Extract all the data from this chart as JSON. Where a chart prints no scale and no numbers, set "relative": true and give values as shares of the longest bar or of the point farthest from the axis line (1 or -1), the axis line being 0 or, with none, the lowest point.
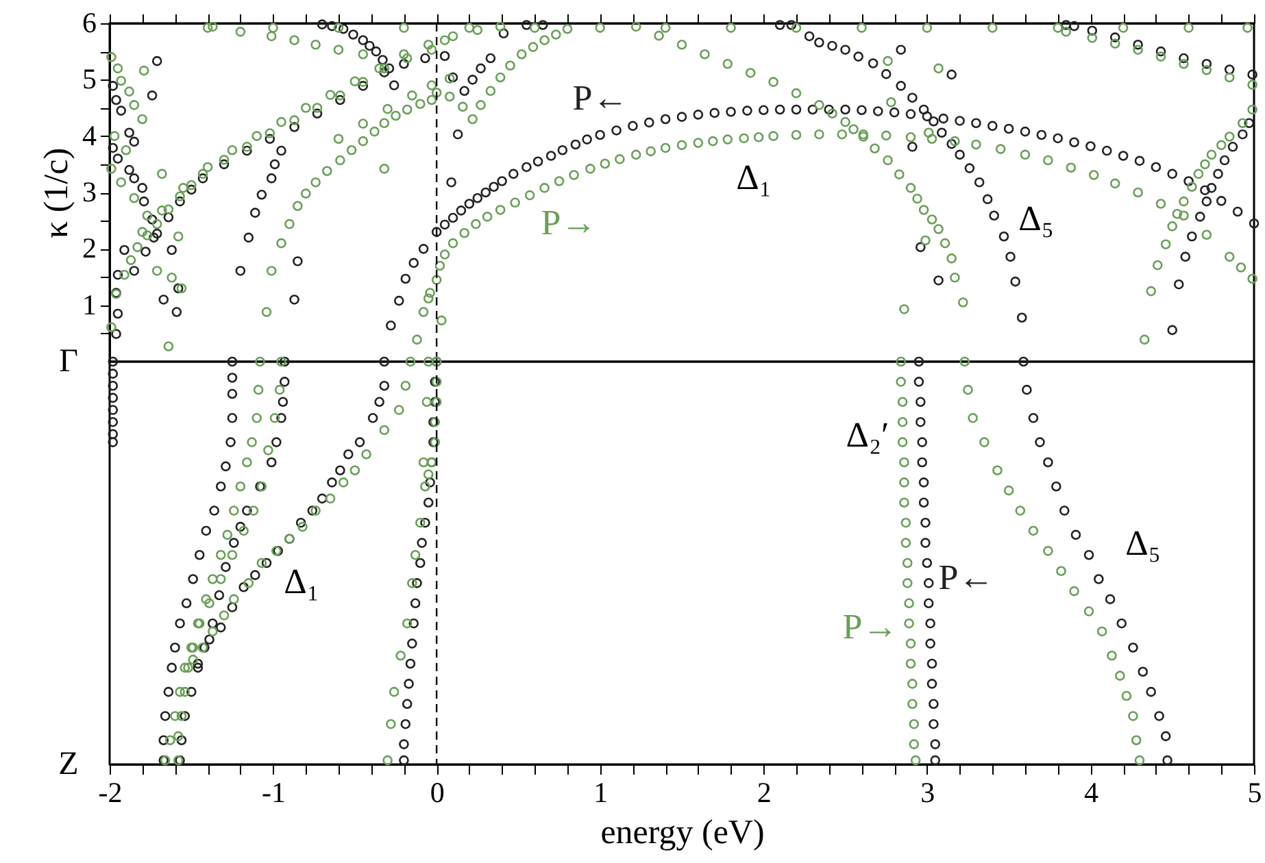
{
  "chart_data": [
    {
      "type": "scatter",
      "ylabel": "κ (1/c)",
      "marker": "circle",
      "tick_labels": "y",
      "xlim": [
        -2,
        5
      ],
      "ylim": [
        0,
        6
      ],
      "xticks": [
        -2,
        {
          "value": -1.8,
          "label": null
        },
        {
          "value": -1.6,
          "label": null
        },
        {
          "value": -1.4,
          "label": null
        },
        {
          "value": -1.2,
          "label": null
        },
        -1,
        {
          "value": -0.8,
          "label": null
        },
        {
          "value": -0.6,
          "label": null
        },
        {
          "value": -0.4,
          "label": null
        },
        {
          "value": -0.2,
          "label": null
        },
        0,
        {
          "value": 0.2,
          "label": null
        },
        {
          "value": 0.4,
          "label": null
        },
        {
          "value": 0.6,
          "label": null
        },
        {
          "value": 0.8,
          "label": null
        },
        1,
        {
          "value": 1.2,
          "label": null
        },
        {
          "value": 1.4,
          "label": null
        },
        {
          "value": 1.6,
          "label": null
        },
        {
          "value": 1.8,
          "label": null
        },
        2,
        {
          "value": 2.2,
          "label": null
        },
        {
          "value": 2.4,
          "label": null
        },
        {
          "value": 2.6,
          "label": null
        },
        {
          "value": 2.8,
          "label": null
        },
        3,
        {
          "value": 3.2,
          "label": null
        },
        {
          "value": 3.4,
          "label": null
        },
        {
          "value": 3.6,
          "label": null
        },
        {
          "value": 3.8,
          "label": null
        },
        4,
        {
          "value": 4.2,
          "label": null
        },
        {
          "value": 4.4,
          "label": null
        },
        {
          "value": 4.6,
          "label": null
        },
        {
          "value": 4.8,
          "label": null
        },
        5
      ],
      "yticks": [
        {
          "value": 0.5,
          "label": null
        },
        1,
        {
          "value": 1.5,
          "label": null
        },
        2,
        {
          "value": 2.5,
          "label": null
        },
        3,
        {
          "value": 3.5,
          "label": null
        },
        4,
        {
          "value": 4.5,
          "label": null
        },
        5,
        {
          "value": 5.5,
          "label": null
        },
        6
      ],
      "ref_lines": [
        {
          "axis": "x",
          "value": 0,
          "line_style": "dashed"
        }
      ],
      "annotations": [
        "Δ₁",
        "Δ₅"
      ],
      "series": [
        {
          "name": "P←",
          "color": "#222222",
          "x": [
            -0.28,
            -0.23,
            -0.19,
            -0.14,
            -0.08,
            0.0,
            0.05,
            0.1,
            0.15,
            0.2,
            0.25,
            0.3,
            0.35,
            0.4,
            0.47,
            0.55,
            0.62,
            0.7,
            0.77,
            0.85,
            0.92,
            1.0,
            1.1,
            1.2,
            1.3,
            1.4,
            1.5,
            1.6,
            1.7,
            1.8,
            1.9,
            2.0,
            2.1,
            2.2,
            2.3,
            2.4,
            2.5,
            2.6,
            2.7,
            2.8,
            2.9,
            3.0,
            3.1,
            3.2,
            3.3,
            3.4,
            3.5,
            3.6,
            3.7,
            3.8,
            3.9,
            4.0,
            4.1,
            4.2,
            4.3,
            4.4,
            4.5,
            4.6,
            4.7,
            4.8,
            4.9,
            5.0,
            -1.96,
            -1.85,
            -1.78,
            -1.71,
            -1.64,
            -1.57,
            -1.5,
            -1.43,
            -1.3,
            -1.16,
            -1.02,
            -0.87,
            -0.73,
            -0.59,
            -0.45,
            -0.32,
            -0.2,
            -0.07,
            0.05,
            -0.7,
            -0.64,
            -0.57,
            -0.51,
            -0.45,
            -0.41,
            -0.37,
            -0.33,
            -0.29,
            -0.26,
            -1.98,
            -1.96,
            -1.93,
            -1.88,
            -1.85,
            -1.98,
            -1.95,
            -1.88,
            -1.85,
            -1.8,
            -1.79,
            -1.74,
            -1.73,
            -1.62,
            -1.91,
            -1.95,
            -1.96,
            -1.95,
            -1.71,
            -1.74,
            -1.58,
            -1.59,
            -1.67,
            -1.2,
            -1.15,
            -1.11,
            -1.07,
            -1.01,
            -0.99,
            -0.95,
            -0.87,
            -0.85,
            0.1,
            0.17,
            0.22,
            0.27,
            0.33,
            0.41,
            0.13,
            0.09,
            2.17,
            2.28,
            2.34,
            2.42,
            2.5,
            2.58,
            2.67,
            2.75,
            2.84,
            2.91,
            2.98,
            3.04,
            3.09,
            3.15,
            3.2,
            3.26,
            3.32,
            3.37,
            3.41,
            3.47,
            3.51,
            3.54,
            3.58,
            4.5,
            4.54,
            4.58,
            4.62,
            4.67,
            4.71,
            4.74,
            4.78,
            4.82,
            4.87,
            4.93,
            4.97,
            2.96,
            3.07,
            2.91,
            2.84,
            3.15,
            3.9,
            4.01,
            4.15,
            4.29,
            4.43,
            4.57,
            4.71,
            4.85,
            4.99,
            0.55,
            0.65,
            2.1,
            3.85
          ],
          "values": [
            0.64,
            1.08,
            1.47,
            1.75,
            2.0,
            2.3,
            2.43,
            2.55,
            2.68,
            2.8,
            2.9,
            3.0,
            3.1,
            3.2,
            3.33,
            3.45,
            3.55,
            3.65,
            3.75,
            3.85,
            3.94,
            4.02,
            4.1,
            4.18,
            4.24,
            4.3,
            4.34,
            4.38,
            4.41,
            4.43,
            4.45,
            4.46,
            4.47,
            4.47,
            4.47,
            4.47,
            4.47,
            4.46,
            4.44,
            4.42,
            4.39,
            4.35,
            4.31,
            4.27,
            4.23,
            4.18,
            4.13,
            4.08,
            4.02,
            3.96,
            3.89,
            3.82,
            3.74,
            3.65,
            3.56,
            3.45,
            3.33,
            3.2,
            3.04,
            2.85,
            2.66,
            2.45,
            1.22,
            1.61,
            1.95,
            2.27,
            2.56,
            2.84,
            3.05,
            3.25,
            3.5,
            3.74,
            3.95,
            4.16,
            4.4,
            4.64,
            4.89,
            5.13,
            5.28,
            5.38,
            5.42,
            5.98,
            5.95,
            5.9,
            5.8,
            5.7,
            5.6,
            5.5,
            5.35,
            5.2,
            4.9,
            4.89,
            4.64,
            4.45,
            4.06,
            3.9,
            3.79,
            3.6,
            3.4,
            3.25,
            3.08,
            2.84,
            2.52,
            2.2,
            1.98,
            1.98,
            1.54,
            0.49,
            0.85,
            5.33,
            4.72,
            1.3,
            0.88,
            1.1,
            1.61,
            2.2,
            2.64,
            2.96,
            3.25,
            3.5,
            3.74,
            1.1,
            1.78,
            5.04,
            4.8,
            5.0,
            5.2,
            5.38,
            5.82,
            4.03,
            3.18,
            5.97,
            5.77,
            5.66,
            5.6,
            5.53,
            5.41,
            5.29,
            5.1,
            4.89,
            4.68,
            4.47,
            4.26,
            4.06,
            3.86,
            3.67,
            3.43,
            3.18,
            2.88,
            2.59,
            2.22,
            1.86,
            1.42,
            0.78,
            0.56,
            1.37,
            1.86,
            2.22,
            2.57,
            2.84,
            3.08,
            3.33,
            3.57,
            3.81,
            4.03,
            4.23,
            2.03,
            1.44,
            3.81,
            5.53,
            5.09,
            5.95,
            5.87,
            5.75,
            5.62,
            5.5,
            5.38,
            5.28,
            5.18,
            5.09,
            5.97,
            5.97,
            5.97,
            5.97
          ]
        },
        {
          "name": "P→",
          "color": "#6a9f58",
          "x": [
            -0.12,
            -0.08,
            -0.04,
            0.0,
            0.02,
            0.05,
            0.1,
            0.17,
            0.24,
            0.31,
            0.39,
            0.48,
            0.57,
            0.66,
            0.75,
            0.84,
            0.94,
            1.03,
            1.12,
            1.22,
            1.31,
            1.4,
            1.5,
            1.6,
            1.69,
            1.78,
            1.88,
            1.97,
            2.06,
            2.2,
            2.34,
            2.48,
            2.61,
            2.75,
            2.9,
            3.03,
            3.17,
            3.3,
            3.45,
            3.6,
            3.74,
            3.88,
            4.02,
            4.15,
            4.29,
            4.43,
            4.57,
            4.71,
            4.85,
            4.92,
            4.99,
            0.03,
            -1.99,
            -1.96,
            -1.91,
            -1.87,
            -1.83,
            -1.77,
            -1.71,
            -1.64,
            -1.57,
            -1.5,
            -1.43,
            -1.3,
            -1.16,
            -1.02,
            -0.87,
            -0.73,
            -0.59,
            -0.45,
            -0.32,
            -0.18,
            -0.03,
            0.1,
            0.25,
            0.39,
            -1.8,
            -1.68,
            -1.55,
            -1.4,
            -1.25,
            -1.1,
            -0.95,
            -0.8,
            -0.65,
            -0.5,
            -0.35,
            -0.2,
            -0.05,
            0.05,
            -1.01,
            -0.95,
            -0.9,
            -0.85,
            -0.8,
            -0.74,
            -0.67,
            -0.59,
            -0.52,
            -0.45,
            -0.38,
            -0.32,
            -0.25,
            -0.18,
            -0.1,
            -0.03,
            0.0,
            0.08,
            0.16,
            0.22,
            0.27,
            0.33,
            0.39,
            0.45,
            0.52,
            0.59,
            0.66,
            0.73,
            0.8,
            -0.6,
            -0.45,
            -0.3,
            -0.15,
            -0.03,
            0.08,
            -1.79,
            -1.99,
            -1.95,
            -1.93,
            -1.88,
            -1.85,
            -1.8,
            -1.99,
            -1.93,
            -1.85,
            -1.77,
            -1.68,
            -1.58,
            -1.71,
            -1.62,
            -1.56,
            -1.64,
            -1.04,
            -0.32,
            -0.05,
            -1.97,
            -1.9,
            1.22,
            1.36,
            1.5,
            1.64,
            1.78,
            1.92,
            2.06,
            2.2,
            2.34,
            2.42,
            2.5,
            2.55,
            2.61,
            2.68,
            2.76,
            2.83,
            2.9,
            2.94,
            2.98,
            3.03,
            3.07,
            3.11,
            3.15,
            3.17,
            3.22,
            2.76,
            3.07,
            2.78,
            3.01,
            2.86,
            2.99,
            4.33,
            4.37,
            4.41,
            4.46,
            4.5,
            4.53,
            4.57,
            4.62,
            4.66,
            4.7,
            4.74,
            4.8,
            4.85,
            4.93,
            4.99,
            3.85,
            4.01,
            4.15,
            4.29,
            4.43,
            4.57,
            4.71,
            4.85,
            4.99,
            -1.4,
            -1.0,
            -0.6,
            -0.2,
            0.2,
            0.6,
            1.0,
            1.4,
            1.8,
            2.2,
            2.6,
            3.0,
            3.4,
            3.8,
            4.2,
            4.6,
            4.96,
            -1.37,
            -1.2,
            -1.01,
            -0.87,
            -0.74,
            -0.6,
            -0.45
          ],
          "values": [
            0.39,
            0.88,
            1.22,
            1.45,
            1.7,
            1.9,
            2.1,
            2.28,
            2.44,
            2.57,
            2.69,
            2.82,
            2.95,
            3.08,
            3.2,
            3.31,
            3.42,
            3.51,
            3.59,
            3.67,
            3.73,
            3.79,
            3.84,
            3.88,
            3.91,
            3.94,
            3.96,
            3.98,
            4.0,
            4.02,
            4.03,
            4.03,
            4.03,
            4.01,
            3.98,
            3.95,
            3.91,
            3.85,
            3.77,
            3.67,
            3.57,
            3.44,
            3.31,
            3.16,
            3.0,
            2.8,
            2.59,
            2.25,
            1.86,
            1.67,
            1.47,
            0.73,
            0.61,
            1.2,
            1.54,
            1.8,
            2.03,
            2.24,
            2.44,
            2.7,
            2.93,
            3.13,
            3.33,
            3.58,
            3.81,
            4.05,
            4.28,
            4.5,
            4.72,
            4.96,
            5.2,
            5.38,
            5.53,
            5.77,
            5.88,
            5.94,
            2.3,
            2.68,
            3.08,
            3.45,
            3.75,
            4.0,
            4.25,
            4.5,
            4.73,
            4.97,
            5.2,
            5.45,
            5.62,
            5.7,
            1.61,
            2.1,
            2.44,
            2.76,
            2.98,
            3.18,
            3.38,
            3.57,
            3.75,
            3.91,
            4.08,
            4.23,
            4.36,
            4.47,
            4.57,
            4.64,
            4.77,
            4.7,
            4.52,
            4.3,
            4.55,
            4.8,
            5.04,
            5.25,
            5.45,
            5.58,
            5.7,
            5.8,
            5.9,
            3.95,
            4.22,
            4.48,
            4.72,
            4.9,
            5.02,
            5.16,
            5.4,
            5.2,
            4.98,
            4.79,
            4.55,
            4.3,
            3.42,
            3.18,
            2.9,
            2.59,
            3.33,
            2.22,
            1.61,
            1.49,
            1.3,
            0.27,
            0.88,
            3.42,
            1.12,
            4.0,
            3.75,
            5.94,
            5.78,
            5.62,
            5.45,
            5.28,
            5.12,
            4.96,
            4.76,
            4.55,
            4.4,
            4.25,
            4.12,
            3.99,
            3.78,
            3.57,
            3.32,
            3.08,
            2.89,
            2.69,
            2.52,
            2.35,
            2.1,
            1.83,
            1.49,
            1.05,
            5.33,
            5.2,
            4.6,
            4.06,
            0.93,
            2.15,
            0.39,
            1.25,
            1.71,
            2.08,
            2.4,
            2.62,
            2.84,
            3.1,
            3.33,
            3.5,
            3.67,
            3.84,
            3.99,
            4.23,
            4.47,
            5.85,
            5.74,
            5.64,
            5.53,
            5.41,
            5.28,
            5.17,
            5.04,
            4.91,
            5.92,
            5.92,
            5.92,
            5.92,
            5.92,
            5.92,
            5.92,
            5.92,
            5.92,
            5.92,
            5.92,
            5.92,
            5.92,
            5.92,
            5.92,
            5.92,
            5.92,
            5.94,
            5.85,
            5.77,
            5.7,
            5.62,
            5.53,
            5.45
          ]
        }
      ]
    },
    {
      "type": "scatter",
      "xlabel": "energy (eV)",
      "marker": "circle",
      "relative": true,
      "xlim": [
        -2,
        5
      ],
      "xticks": [
        -2,
        {
          "value": -1.8,
          "label": null
        },
        {
          "value": -1.6,
          "label": null
        },
        {
          "value": -1.4,
          "label": null
        },
        {
          "value": -1.2,
          "label": null
        },
        -1,
        {
          "value": -0.8,
          "label": null
        },
        {
          "value": -0.6,
          "label": null
        },
        {
          "value": -0.4,
          "label": null
        },
        {
          "value": -0.2,
          "label": null
        },
        0,
        {
          "value": 0.2,
          "label": null
        },
        {
          "value": 0.4,
          "label": null
        },
        {
          "value": 0.6,
          "label": null
        },
        {
          "value": 0.8,
          "label": null
        },
        1,
        {
          "value": 1.2,
          "label": null
        },
        {
          "value": 1.4,
          "label": null
        },
        {
          "value": 1.6,
          "label": null
        },
        {
          "value": 1.8,
          "label": null
        },
        2,
        {
          "value": 2.2,
          "label": null
        },
        {
          "value": 2.4,
          "label": null
        },
        {
          "value": 2.6,
          "label": null
        },
        {
          "value": 2.8,
          "label": null
        },
        3,
        {
          "value": 3.2,
          "label": null
        },
        {
          "value": 3.4,
          "label": null
        },
        {
          "value": 3.6,
          "label": null
        },
        {
          "value": 3.8,
          "label": null
        },
        4,
        {
          "value": 4.2,
          "label": null
        },
        {
          "value": 4.4,
          "label": null
        },
        {
          "value": 4.6,
          "label": null
        },
        {
          "value": 4.8,
          "label": null
        },
        5
      ],
      "ref_lines": [
        {
          "axis": "x",
          "value": 0,
          "line_style": "dashed"
        }
      ],
      "annotations": [
        "Γ",
        "Z",
        "Δ₁",
        "Δ₂′",
        "Δ₅"
      ],
      "series": [
        {
          "name": "P←",
          "color": "#222222",
          "x": [
            -1.98,
            -1.98,
            -1.98,
            -1.98,
            -1.98,
            -1.98,
            -1.98,
            -1.98,
            -1.25,
            -1.25,
            -1.25,
            -1.25,
            -1.26,
            -1.29,
            -1.32,
            -1.36,
            -1.41,
            -1.45,
            -1.49,
            -1.53,
            -1.57,
            -1.6,
            -1.62,
            -1.64,
            -1.66,
            -1.67,
            -1.67,
            -0.93,
            -0.93,
            -0.94,
            -0.95,
            -0.98,
            -1.01,
            -1.08,
            -1.16,
            -1.2,
            -1.24,
            -1.29,
            -1.33,
            -1.37,
            -1.42,
            -1.46,
            -1.5,
            -1.54,
            -1.56,
            -1.57,
            -0.32,
            -0.32,
            -0.35,
            -0.39,
            -0.47,
            -0.54,
            -0.59,
            -0.64,
            -0.7,
            -0.76,
            -0.83,
            -0.9,
            -0.97,
            -1.04,
            -1.11,
            -1.18,
            -1.25,
            -1.32,
            -1.39,
            -1.46,
            0.0,
            -0.01,
            -0.01,
            -0.02,
            -0.02,
            -0.03,
            -0.04,
            -0.05,
            -0.07,
            -0.09,
            -0.1,
            -0.12,
            -0.13,
            -0.14,
            -0.15,
            -0.16,
            -0.17,
            -0.18,
            -0.19,
            -0.2,
            -0.2,
            2.95,
            2.95,
            2.96,
            2.96,
            2.97,
            2.97,
            2.98,
            2.98,
            2.99,
            2.99,
            3.0,
            3.01,
            3.01,
            3.02,
            3.02,
            3.03,
            3.03,
            3.04,
            3.04,
            3.05,
            3.05,
            3.59,
            3.61,
            3.65,
            3.69,
            3.74,
            3.79,
            3.84,
            3.91,
            3.99,
            4.05,
            4.12,
            4.19,
            4.26,
            4.32,
            4.37,
            4.42,
            4.46,
            4.47
          ],
          "values": [
            1.0,
            0.97,
            0.94,
            0.91,
            0.88,
            0.85,
            0.82,
            0.8,
            1.0,
            0.96,
            0.92,
            0.86,
            0.8,
            0.74,
            0.69,
            0.63,
            0.58,
            0.52,
            0.46,
            0.4,
            0.35,
            0.29,
            0.24,
            0.18,
            0.12,
            0.06,
            0.01,
            1.0,
            0.95,
            0.9,
            0.86,
            0.8,
            0.75,
            0.69,
            0.63,
            0.59,
            0.55,
            0.49,
            0.42,
            0.35,
            0.29,
            0.24,
            0.18,
            0.12,
            0.06,
            0.01,
            1.0,
            0.94,
            0.9,
            0.86,
            0.8,
            0.77,
            0.73,
            0.7,
            0.66,
            0.63,
            0.6,
            0.56,
            0.53,
            0.5,
            0.47,
            0.44,
            0.39,
            0.34,
            0.31,
            0.25,
            1.0,
            0.95,
            0.9,
            0.85,
            0.8,
            0.75,
            0.7,
            0.65,
            0.6,
            0.55,
            0.5,
            0.45,
            0.4,
            0.35,
            0.3,
            0.25,
            0.2,
            0.15,
            0.1,
            0.05,
            0.01,
            1.0,
            0.95,
            0.9,
            0.85,
            0.8,
            0.75,
            0.7,
            0.65,
            0.6,
            0.55,
            0.5,
            0.45,
            0.4,
            0.35,
            0.3,
            0.25,
            0.2,
            0.15,
            0.1,
            0.05,
            0.01,
            1.0,
            0.93,
            0.86,
            0.8,
            0.75,
            0.69,
            0.63,
            0.57,
            0.52,
            0.46,
            0.41,
            0.35,
            0.29,
            0.23,
            0.18,
            0.12,
            0.07,
            0.01
          ]
        },
        {
          "name": "P→",
          "color": "#6a9f58",
          "x": [
            -1.08,
            -1.09,
            -1.1,
            -1.13,
            -1.16,
            -1.2,
            -1.24,
            -1.28,
            -1.32,
            -1.37,
            -1.41,
            -1.45,
            -1.49,
            -1.52,
            -1.54,
            -1.56,
            -1.58,
            -1.58,
            -0.95,
            -0.96,
            -0.99,
            -1.03,
            -1.07,
            -1.12,
            -1.18,
            -1.25,
            -1.32,
            -1.39,
            -1.46,
            -1.5,
            -1.54,
            -1.57,
            -1.6,
            -1.63,
            -1.66,
            -0.16,
            -0.19,
            -0.23,
            -0.32,
            -0.43,
            -0.5,
            -0.57,
            -0.65,
            -0.74,
            -0.82,
            -0.9,
            -0.98,
            -1.07,
            -1.15,
            -1.24,
            -1.3,
            -1.37,
            -1.43,
            -1.49,
            0.0,
            0.0,
            0.0,
            -0.01,
            -0.01,
            -0.03,
            -0.05,
            -0.07,
            -0.1,
            -0.13,
            -0.15,
            -0.18,
            -0.22,
            -0.26,
            -0.28,
            -0.3,
            -0.05,
            -0.06,
            -0.08,
            2.84,
            2.84,
            2.85,
            2.85,
            2.85,
            2.86,
            2.86,
            2.86,
            2.87,
            2.87,
            2.88,
            2.88,
            2.89,
            2.89,
            2.9,
            2.9,
            2.91,
            2.91,
            2.92,
            2.92,
            2.93,
            3.23,
            3.25,
            3.28,
            3.35,
            3.43,
            3.5,
            3.57,
            3.65,
            3.74,
            3.82,
            3.9,
            3.99,
            4.07,
            4.13,
            4.18,
            4.22,
            4.26,
            4.28,
            4.3
          ],
          "values": [
            1.0,
            0.93,
            0.86,
            0.8,
            0.75,
            0.69,
            0.63,
            0.57,
            0.52,
            0.46,
            0.41,
            0.35,
            0.29,
            0.24,
            0.18,
            0.12,
            0.07,
            0.01,
            1.0,
            0.93,
            0.86,
            0.78,
            0.69,
            0.63,
            0.58,
            0.52,
            0.46,
            0.4,
            0.35,
            0.29,
            0.24,
            0.18,
            0.12,
            0.06,
            0.01,
            1.0,
            0.94,
            0.88,
            0.83,
            0.77,
            0.73,
            0.7,
            0.66,
            0.63,
            0.59,
            0.56,
            0.53,
            0.5,
            0.45,
            0.41,
            0.37,
            0.33,
            0.29,
            0.26,
            1.0,
            0.95,
            0.9,
            0.85,
            0.8,
            0.75,
            0.72,
            0.69,
            0.6,
            0.52,
            0.45,
            0.35,
            0.27,
            0.18,
            0.1,
            0.01,
            1.0,
            0.9,
            0.75,
            1.0,
            0.95,
            0.9,
            0.85,
            0.8,
            0.75,
            0.7,
            0.65,
            0.6,
            0.55,
            0.5,
            0.45,
            0.4,
            0.35,
            0.3,
            0.25,
            0.2,
            0.15,
            0.1,
            0.05,
            0.01,
            1.0,
            0.93,
            0.86,
            0.8,
            0.73,
            0.68,
            0.63,
            0.58,
            0.53,
            0.48,
            0.43,
            0.38,
            0.33,
            0.27,
            0.22,
            0.17,
            0.12,
            0.06,
            0.01
          ]
        }
      ]
    }
  ]
}
